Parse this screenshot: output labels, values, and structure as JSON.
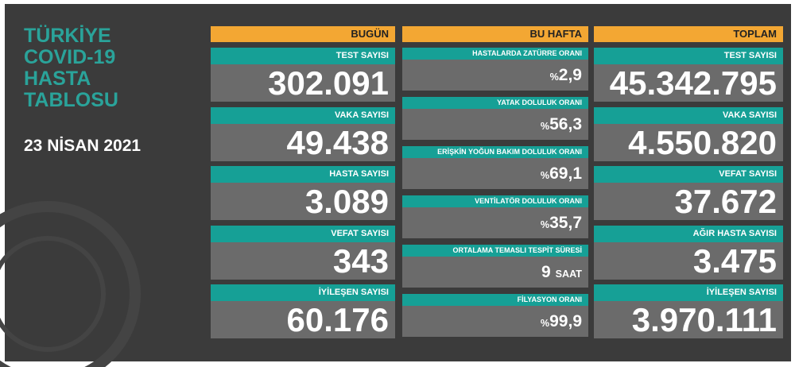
{
  "title": [
    "TÜRKİYE",
    "COVID-19",
    "HASTA",
    "TABLOSU"
  ],
  "date": "23 NİSAN 2021",
  "columns": [
    {
      "header": "BUGÜN",
      "items": [
        {
          "label": "TEST SAYISI",
          "value": "302.091"
        },
        {
          "label": "VAKA SAYISI",
          "value": "49.438"
        },
        {
          "label": "HASTA SAYISI",
          "value": "3.089"
        },
        {
          "label": "VEFAT SAYISI",
          "value": "343"
        },
        {
          "label": "İYİLEŞEN SAYISI",
          "value": "60.176"
        }
      ]
    },
    {
      "header": "BU HAFTA",
      "items": [
        {
          "label": "HASTALARDA ZATÜRRE ORANI",
          "prefix": "%",
          "value": "2,9"
        },
        {
          "label": "YATAK DOLULUK ORANI",
          "prefix": "%",
          "value": "56,3"
        },
        {
          "label": "ERİŞKİN YOĞUN BAKIM DOLULUK ORANI",
          "prefix": "%",
          "value": "69,1"
        },
        {
          "label": "VENTİLATÖR DOLULUK ORANI",
          "prefix": "%",
          "value": "35,7"
        },
        {
          "label": "ORTALAMA TEMASLI TESPİT SÜRESİ",
          "value": "9",
          "suffix": "SAAT"
        },
        {
          "label": "FİLYASYON ORANI",
          "prefix": "%",
          "value": "99,9"
        }
      ]
    },
    {
      "header": "TOPLAM",
      "items": [
        {
          "label": "TEST SAYISI",
          "value": "45.342.795"
        },
        {
          "label": "VAKA SAYISI",
          "value": "4.550.820"
        },
        {
          "label": "VEFAT SAYISI",
          "value": "37.672"
        },
        {
          "label": "AĞIR HASTA SAYISI",
          "value": "3.475"
        },
        {
          "label": "İYİLEŞEN SAYISI",
          "value": "3.970.111"
        }
      ]
    }
  ]
}
